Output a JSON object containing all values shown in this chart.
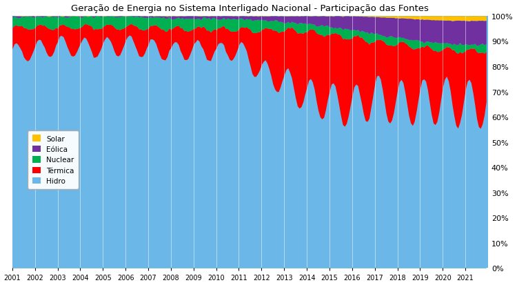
{
  "title": "Geração de Energia no Sistema Interligado Nacional - Participação das Fontes",
  "hidro_color": "#6BB8E8",
  "termica_color": "#FF0000",
  "nuclear_color": "#00B050",
  "eolica_color": "#7030A0",
  "solar_color": "#FFC000",
  "legend_labels": [
    "Solar",
    "Eólica",
    "Nuclear",
    "Térmica",
    "Hidro"
  ],
  "ytick_labels": [
    "0%",
    "10%",
    "20%",
    "30%",
    "40%",
    "50%",
    "60%",
    "70%",
    "80%",
    "90%",
    "100%"
  ],
  "yticks": [
    0.0,
    0.1,
    0.2,
    0.3,
    0.4,
    0.5,
    0.6,
    0.7,
    0.8,
    0.9,
    1.0
  ],
  "hidro_annual_mean": [
    0.83,
    0.84,
    0.86,
    0.85,
    0.85,
    0.86,
    0.85,
    0.84,
    0.85,
    0.84,
    0.85,
    0.76,
    0.72,
    0.66,
    0.64,
    0.62,
    0.66,
    0.64,
    0.65,
    0.65,
    0.65
  ],
  "termica_annual_mean": [
    0.1,
    0.09,
    0.07,
    0.08,
    0.08,
    0.07,
    0.08,
    0.09,
    0.08,
    0.09,
    0.08,
    0.16,
    0.2,
    0.25,
    0.26,
    0.27,
    0.21,
    0.23,
    0.21,
    0.2,
    0.21
  ],
  "nuclear_annual_mean": [
    0.04,
    0.04,
    0.04,
    0.04,
    0.04,
    0.04,
    0.04,
    0.04,
    0.04,
    0.04,
    0.04,
    0.04,
    0.03,
    0.03,
    0.03,
    0.03,
    0.03,
    0.025,
    0.025,
    0.025,
    0.025
  ],
  "eolica_annual_mean": [
    0.001,
    0.001,
    0.001,
    0.001,
    0.002,
    0.003,
    0.005,
    0.007,
    0.008,
    0.008,
    0.01,
    0.015,
    0.022,
    0.03,
    0.04,
    0.055,
    0.065,
    0.075,
    0.085,
    0.09,
    0.095
  ],
  "solar_annual_mean": [
    0.0,
    0.0,
    0.0,
    0.0,
    0.0,
    0.0,
    0.0,
    0.0,
    0.0,
    0.0,
    0.0,
    0.0,
    0.0,
    0.0,
    0.0,
    0.0,
    0.003,
    0.007,
    0.012,
    0.016,
    0.018
  ]
}
